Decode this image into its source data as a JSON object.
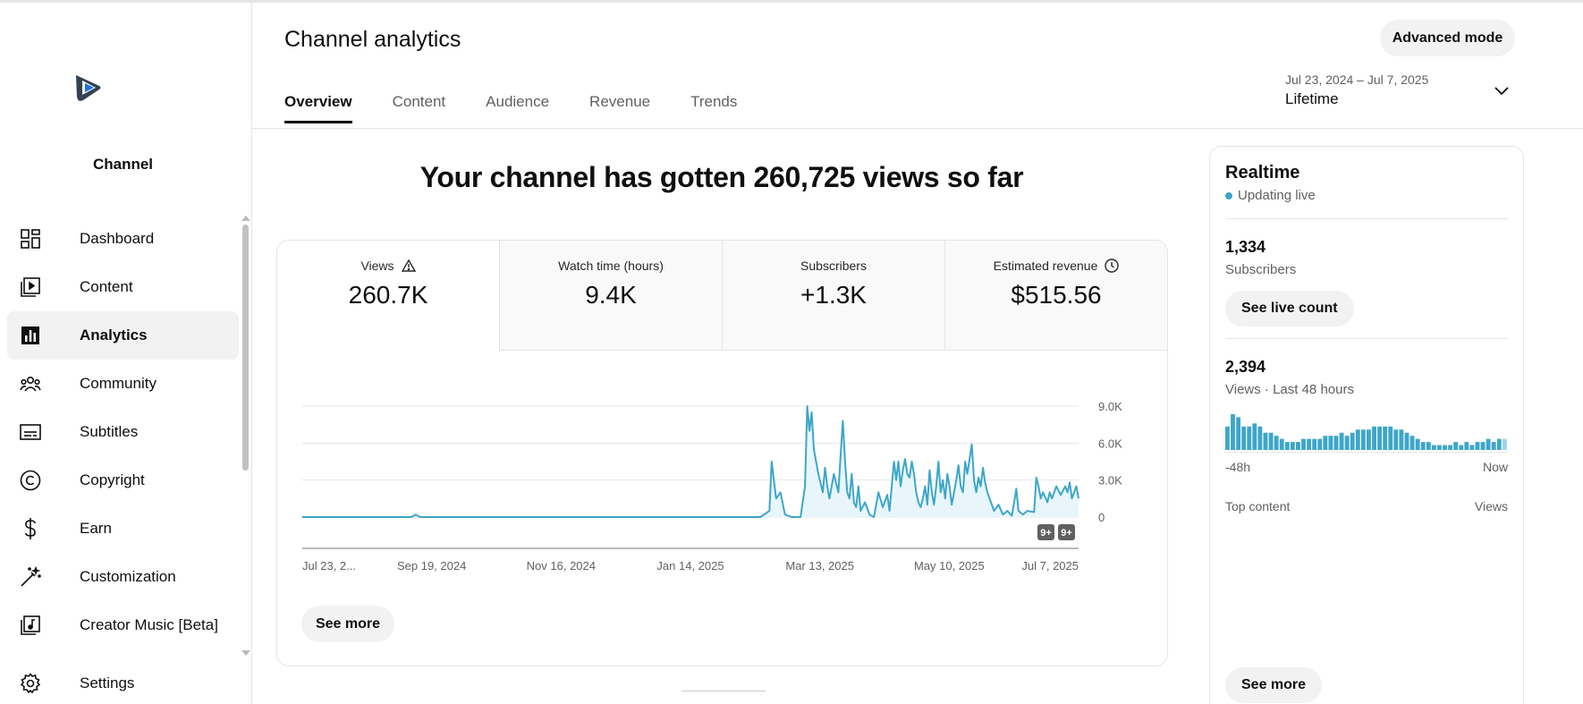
{
  "sidebar": {
    "channel_label": "Channel",
    "items": [
      {
        "label": "Dashboard",
        "icon": "dashboard-icon"
      },
      {
        "label": "Content",
        "icon": "content-icon"
      },
      {
        "label": "Analytics",
        "icon": "analytics-icon",
        "active": true
      },
      {
        "label": "Community",
        "icon": "community-icon"
      },
      {
        "label": "Subtitles",
        "icon": "subtitles-icon"
      },
      {
        "label": "Copyright",
        "icon": "copyright-icon"
      },
      {
        "label": "Earn",
        "icon": "earn-icon"
      },
      {
        "label": "Customization",
        "icon": "customization-icon"
      },
      {
        "label": "Creator Music [Beta]",
        "icon": "creator-music-icon"
      }
    ],
    "settings_label": "Settings"
  },
  "header": {
    "title": "Channel analytics",
    "advanced_mode_label": "Advanced mode",
    "tabs": [
      "Overview",
      "Content",
      "Audience",
      "Revenue",
      "Trends"
    ],
    "active_tab": "Overview",
    "date_range": "Jul 23, 2024 – Jul 7, 2025",
    "date_label": "Lifetime"
  },
  "headline": "Your channel has gotten 260,725 views so far",
  "metrics": [
    {
      "label": "Views",
      "value": "260.7K",
      "icon": "warning-icon"
    },
    {
      "label": "Watch time (hours)",
      "value": "9.4K"
    },
    {
      "label": "Subscribers",
      "value": "+1.3K"
    },
    {
      "label": "Estimated revenue",
      "value": "$515.56",
      "icon": "clock-icon"
    }
  ],
  "see_more_label": "See more",
  "chart_data": {
    "type": "line",
    "series_color": "#3ea6c9",
    "x_tick_labels": [
      "Jul 23, 2...",
      "Sep 19, 2024",
      "Nov 16, 2024",
      "Jan 14, 2025",
      "Mar 13, 2025",
      "May 10, 2025",
      "Jul 7, 2025"
    ],
    "y_tick_labels": [
      "9.0K",
      "6.0K",
      "3.0K",
      "0"
    ],
    "y_ticks": [
      9000,
      6000,
      3000,
      0
    ],
    "ylim": [
      0,
      9000
    ],
    "grid": true,
    "x_start": "2024-07-23",
    "x_end": "2025-07-07",
    "annotations": [
      "9+",
      "9+"
    ],
    "points": [
      [
        "2024-07-23",
        0
      ],
      [
        "2024-08-10",
        0
      ],
      [
        "2024-09-01",
        0
      ],
      [
        "2024-09-10",
        0
      ],
      [
        "2024-09-12",
        200
      ],
      [
        "2024-09-14",
        0
      ],
      [
        "2024-10-15",
        0
      ],
      [
        "2024-11-20",
        0
      ],
      [
        "2024-12-20",
        0
      ],
      [
        "2025-01-25",
        0
      ],
      [
        "2025-02-14",
        0
      ],
      [
        "2025-02-18",
        500
      ],
      [
        "2025-02-19",
        4500
      ],
      [
        "2025-02-21",
        1500
      ],
      [
        "2025-02-23",
        2000
      ],
      [
        "2025-02-25",
        200
      ],
      [
        "2025-02-28",
        0
      ],
      [
        "2025-03-04",
        0
      ],
      [
        "2025-03-06",
        2500
      ],
      [
        "2025-03-07",
        9000
      ],
      [
        "2025-03-08",
        7000
      ],
      [
        "2025-03-09",
        8500
      ],
      [
        "2025-03-10",
        5500
      ],
      [
        "2025-03-12",
        3500
      ],
      [
        "2025-03-14",
        2000
      ],
      [
        "2025-03-15",
        4000
      ],
      [
        "2025-03-16",
        2500
      ],
      [
        "2025-03-17",
        1500
      ],
      [
        "2025-03-19",
        3500
      ],
      [
        "2025-03-21",
        2000
      ],
      [
        "2025-03-22",
        5000
      ],
      [
        "2025-03-23",
        7800
      ],
      [
        "2025-03-24",
        4500
      ],
      [
        "2025-03-25",
        2000
      ],
      [
        "2025-03-26",
        1500
      ],
      [
        "2025-03-27",
        3500
      ],
      [
        "2025-03-28",
        1200
      ],
      [
        "2025-03-29",
        800
      ],
      [
        "2025-03-30",
        2500
      ],
      [
        "2025-03-31",
        500
      ],
      [
        "2025-04-02",
        1200
      ],
      [
        "2025-04-04",
        200
      ],
      [
        "2025-04-06",
        0
      ],
      [
        "2025-04-08",
        2000
      ],
      [
        "2025-04-10",
        800
      ],
      [
        "2025-04-12",
        1800
      ],
      [
        "2025-04-13",
        500
      ],
      [
        "2025-04-15",
        4500
      ],
      [
        "2025-04-16",
        3000
      ],
      [
        "2025-04-17",
        4500
      ],
      [
        "2025-04-18",
        2500
      ],
      [
        "2025-04-19",
        3800
      ],
      [
        "2025-04-20",
        4700
      ],
      [
        "2025-04-21",
        3500
      ],
      [
        "2025-04-22",
        3200
      ],
      [
        "2025-04-23",
        4500
      ],
      [
        "2025-04-24",
        3500
      ],
      [
        "2025-04-25",
        2000
      ],
      [
        "2025-04-26",
        1200
      ],
      [
        "2025-04-27",
        800
      ],
      [
        "2025-04-28",
        1500
      ],
      [
        "2025-04-29",
        2500
      ],
      [
        "2025-04-30",
        1000
      ],
      [
        "2025-05-01",
        3800
      ],
      [
        "2025-05-02",
        2000
      ],
      [
        "2025-05-03",
        1000
      ],
      [
        "2025-05-04",
        2500
      ],
      [
        "2025-05-05",
        4500
      ],
      [
        "2025-05-06",
        2000
      ],
      [
        "2025-05-07",
        3000
      ],
      [
        "2025-05-08",
        1500
      ],
      [
        "2025-05-09",
        3500
      ],
      [
        "2025-05-10",
        2500
      ],
      [
        "2025-05-11",
        1000
      ],
      [
        "2025-05-12",
        2000
      ],
      [
        "2025-05-13",
        3000
      ],
      [
        "2025-05-14",
        4200
      ],
      [
        "2025-05-15",
        2500
      ],
      [
        "2025-05-16",
        2000
      ],
      [
        "2025-05-17",
        4500
      ],
      [
        "2025-05-18",
        3500
      ],
      [
        "2025-05-20",
        5900
      ],
      [
        "2025-05-21",
        3000
      ],
      [
        "2025-05-22",
        2000
      ],
      [
        "2025-05-23",
        3200
      ],
      [
        "2025-05-24",
        2500
      ],
      [
        "2025-05-25",
        4000
      ],
      [
        "2025-05-26",
        2800
      ],
      [
        "2025-05-27",
        2000
      ],
      [
        "2025-05-28",
        1500
      ],
      [
        "2025-05-30",
        500
      ],
      [
        "2025-06-01",
        1000
      ],
      [
        "2025-06-03",
        200
      ],
      [
        "2025-06-05",
        500
      ],
      [
        "2025-06-07",
        100
      ],
      [
        "2025-06-09",
        2300
      ],
      [
        "2025-06-10",
        500
      ],
      [
        "2025-06-12",
        200
      ],
      [
        "2025-06-14",
        500
      ],
      [
        "2025-06-17",
        400
      ],
      [
        "2025-06-18",
        3200
      ],
      [
        "2025-06-19",
        2500
      ],
      [
        "2025-06-20",
        1500
      ],
      [
        "2025-06-21",
        2000
      ],
      [
        "2025-06-23",
        1200
      ],
      [
        "2025-06-24",
        2000
      ],
      [
        "2025-06-25",
        1500
      ],
      [
        "2025-06-27",
        2500
      ],
      [
        "2025-06-29",
        1800
      ],
      [
        "2025-07-01",
        2500
      ],
      [
        "2025-07-02",
        2000
      ],
      [
        "2025-07-03",
        2800
      ],
      [
        "2025-07-04",
        1500
      ],
      [
        "2025-07-06",
        2500
      ],
      [
        "2025-07-07",
        1500
      ]
    ]
  },
  "realtime": {
    "title": "Realtime",
    "status": "Updating live",
    "subscribers_count": "1,334",
    "subscribers_label": "Subscribers",
    "see_live_count_label": "See live count",
    "views_count": "2,394",
    "views_label": "Views · Last 48 hours",
    "axis_start": "-48h",
    "axis_end": "Now",
    "top_content_label": "Top content",
    "top_content_views_label": "Views",
    "see_more_label": "See more",
    "bar_values": [
      7,
      11,
      10,
      7,
      7,
      8,
      7,
      5,
      5,
      4,
      3,
      2,
      2,
      2,
      3,
      3,
      3,
      3,
      4,
      4,
      4,
      5,
      4,
      5,
      6,
      6,
      6,
      7,
      7,
      7,
      7,
      6,
      6,
      5,
      4,
      3,
      2,
      2,
      1,
      1,
      1,
      1,
      2,
      1,
      2,
      1,
      2,
      2,
      3,
      2,
      3,
      3
    ]
  },
  "colors": {
    "accent": "#3ea6c9",
    "chart_fill": "#e8f6fb"
  }
}
